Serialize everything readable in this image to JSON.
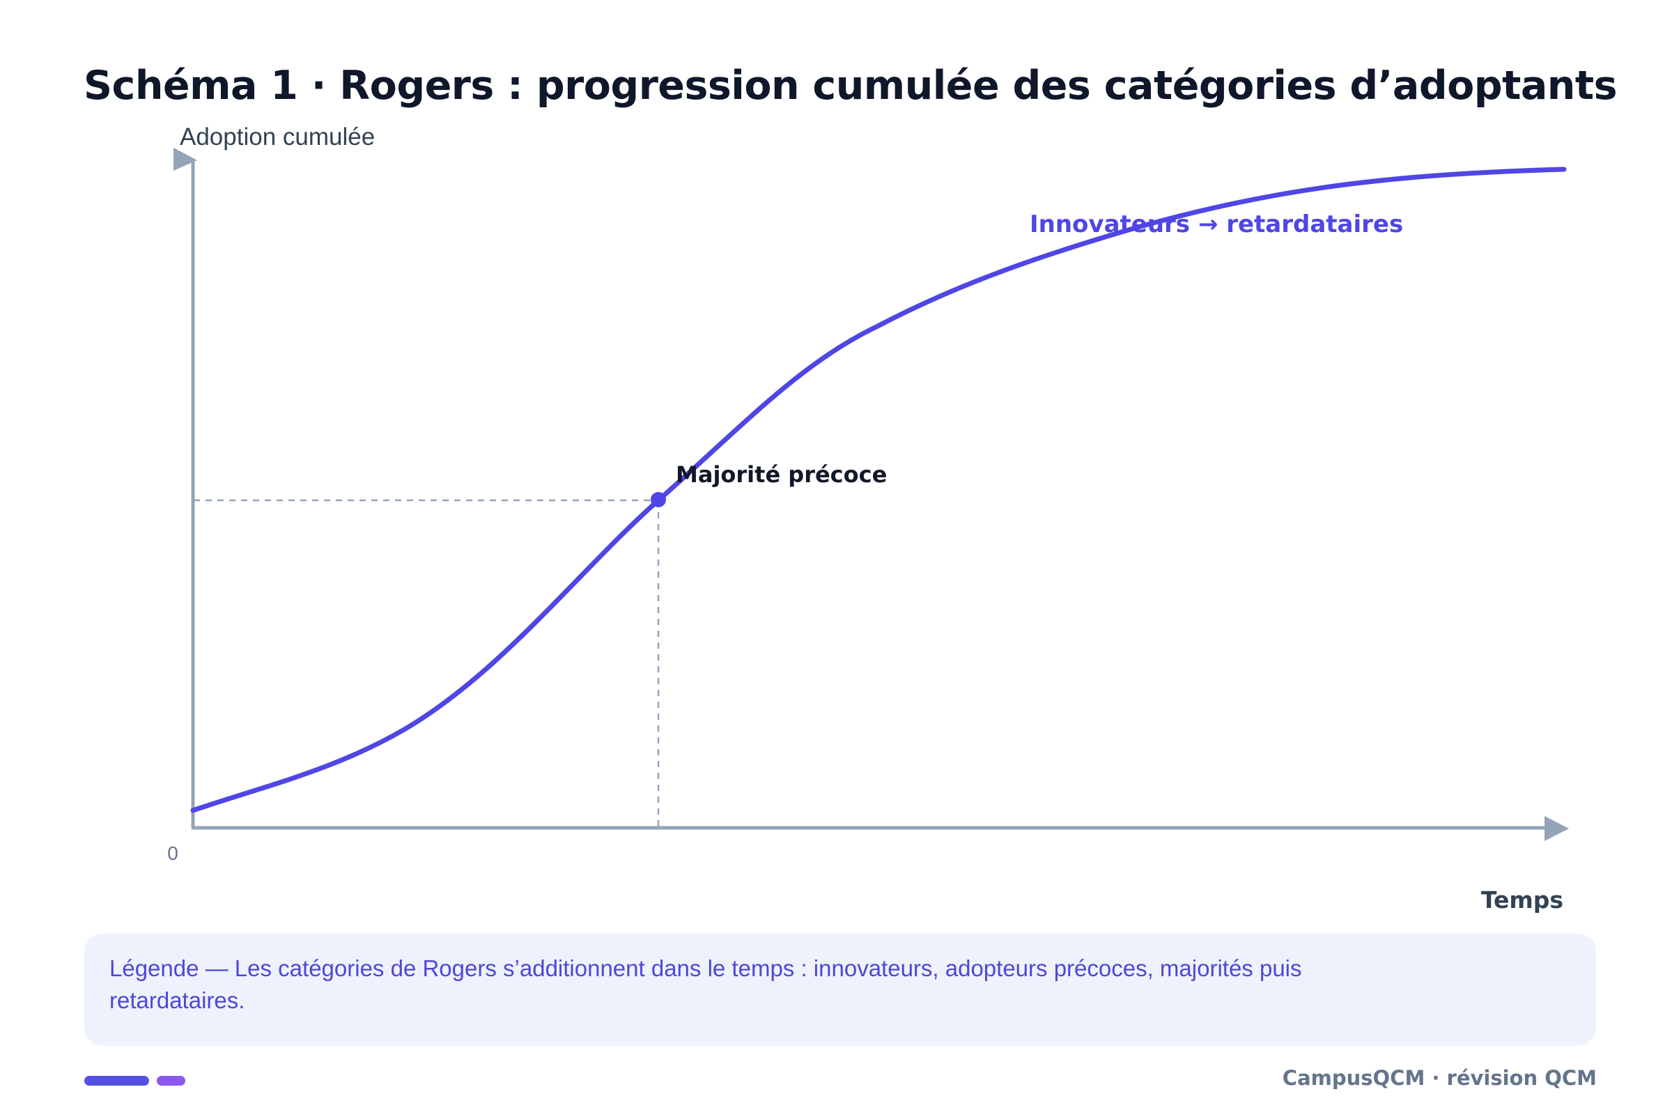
{
  "title": "Schéma 1 · Rogers : progression cumulée des catégories d’adoptants",
  "diagram": {
    "y_axis_label": "Adoption cumulée",
    "x_axis_label": "Temps",
    "origin_label": "0",
    "curve_label": "Innovateurs → retardataires",
    "point_label": "Majorité précoce",
    "colors": {
      "curve": "#4f46e5",
      "axis": "#94a3b8",
      "guide": "#94a3b8",
      "point": "#4f46e5"
    }
  },
  "legend": {
    "text": "Légende — Les catégories de Rogers s’additionnent dans le temps : innovateurs, adopteurs précoces, majorités puis retardataires."
  },
  "footer": {
    "text": "CampusQCM · révision QCM"
  }
}
